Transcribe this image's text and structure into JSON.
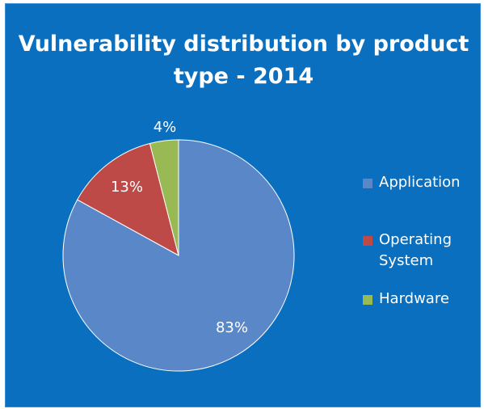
{
  "chart_data": {
    "type": "pie",
    "title": "Vulnerability distribution by product type - 2014",
    "categories": [
      "Application",
      "Operating System",
      "Hardware"
    ],
    "values": [
      83,
      13,
      4
    ],
    "data_labels": [
      "83%",
      "13%",
      "4%"
    ],
    "colors": [
      "#5a87c8",
      "#be4a48",
      "#98b954"
    ],
    "legend_placement": "right"
  },
  "background_color": "#0a6fbf",
  "text_color": "#ffffff",
  "legend": [
    {
      "label": "Application",
      "color": "#5a87c8"
    },
    {
      "label": "Operating\nSystem",
      "color": "#be4a48"
    },
    {
      "label": "Hardware",
      "color": "#98b954"
    }
  ]
}
